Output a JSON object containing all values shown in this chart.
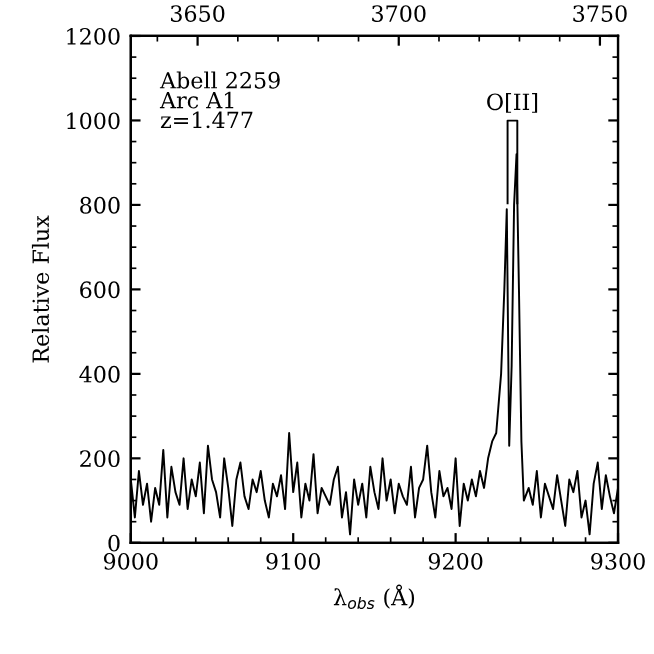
{
  "chart_data": {
    "type": "line",
    "xlabel": "λ$_{obs}$ (Å)",
    "ylabel": "Relative Flux",
    "xlim": [
      9000,
      9300
    ],
    "xticks": [
      9000,
      9100,
      9200,
      9300
    ],
    "ylim": [
      0,
      1200
    ],
    "yticks": [
      0,
      200,
      400,
      600,
      800,
      1000,
      1200
    ],
    "x2lim": [
      3633.4,
      3754.5
    ],
    "x2ticks": [
      3650,
      3700,
      3750
    ],
    "annotations": [
      "Abell 2259\nArc A1\nz=1.477",
      "O[II]"
    ],
    "grid": false,
    "legend": false,
    "series": [
      {
        "color": "#000000",
        "x": [
          9000,
          9002.5,
          9005,
          9007.5,
          9010,
          9012.5,
          9015,
          9017.5,
          9020,
          9022.5,
          9025,
          9027.5,
          9030,
          9032.5,
          9035,
          9037.5,
          9040,
          9042.5,
          9045,
          9047.5,
          9050,
          9052.5,
          9055,
          9057.5,
          9060,
          9062.5,
          9065,
          9067.5,
          9070,
          9072.5,
          9075,
          9077.5,
          9080,
          9082.5,
          9085,
          9087.5,
          9090,
          9092.5,
          9095,
          9097.5,
          9100,
          9102.5,
          9105,
          9107.5,
          9110,
          9112.5,
          9115,
          9117.5,
          9120,
          9122.5,
          9125,
          9127.5,
          9130,
          9132.5,
          9135,
          9137.5,
          9140,
          9142.5,
          9145,
          9147.5,
          9150,
          9152.5,
          9155,
          9157.5,
          9160,
          9162.5,
          9165,
          9167.5,
          9170,
          9172.5,
          9175,
          9177.5,
          9180,
          9182.5,
          9185,
          9187.5,
          9190,
          9192.5,
          9195,
          9197.5,
          9200,
          9202.5,
          9205,
          9207.5,
          9210,
          9212.5,
          9215,
          9217.5,
          9220,
          9222.5,
          9225,
          9228,
          9230,
          9231.5,
          9233,
          9234.5,
          9236,
          9237.5,
          9239,
          9240.5,
          9242,
          9245,
          9247.5,
          9250,
          9252.5,
          9255,
          9257.5,
          9260,
          9262.5,
          9265,
          9267.5,
          9270,
          9272.5,
          9275,
          9277.5,
          9280,
          9282.5,
          9285,
          9287.5,
          9290,
          9292.5,
          9295,
          9297.5,
          9300
        ],
        "values": [
          150,
          60,
          170,
          90,
          140,
          50,
          130,
          90,
          220,
          60,
          180,
          120,
          90,
          200,
          80,
          150,
          110,
          190,
          70,
          230,
          150,
          120,
          60,
          200,
          130,
          40,
          150,
          190,
          110,
          80,
          150,
          120,
          170,
          100,
          60,
          140,
          110,
          160,
          80,
          260,
          120,
          190,
          60,
          140,
          100,
          210,
          70,
          130,
          110,
          90,
          150,
          180,
          60,
          120,
          20,
          150,
          90,
          140,
          60,
          180,
          120,
          80,
          200,
          100,
          150,
          70,
          140,
          110,
          90,
          180,
          60,
          130,
          150,
          230,
          120,
          60,
          170,
          110,
          130,
          80,
          200,
          40,
          140,
          100,
          150,
          110,
          170,
          130,
          200,
          240,
          260,
          400,
          600,
          790,
          230,
          420,
          800,
          920,
          600,
          240,
          100,
          130,
          90,
          170,
          60,
          140,
          110,
          80,
          160,
          100,
          40,
          150,
          120,
          170,
          60,
          100,
          20,
          140,
          190,
          80,
          160,
          110,
          70,
          130
        ]
      }
    ]
  }
}
